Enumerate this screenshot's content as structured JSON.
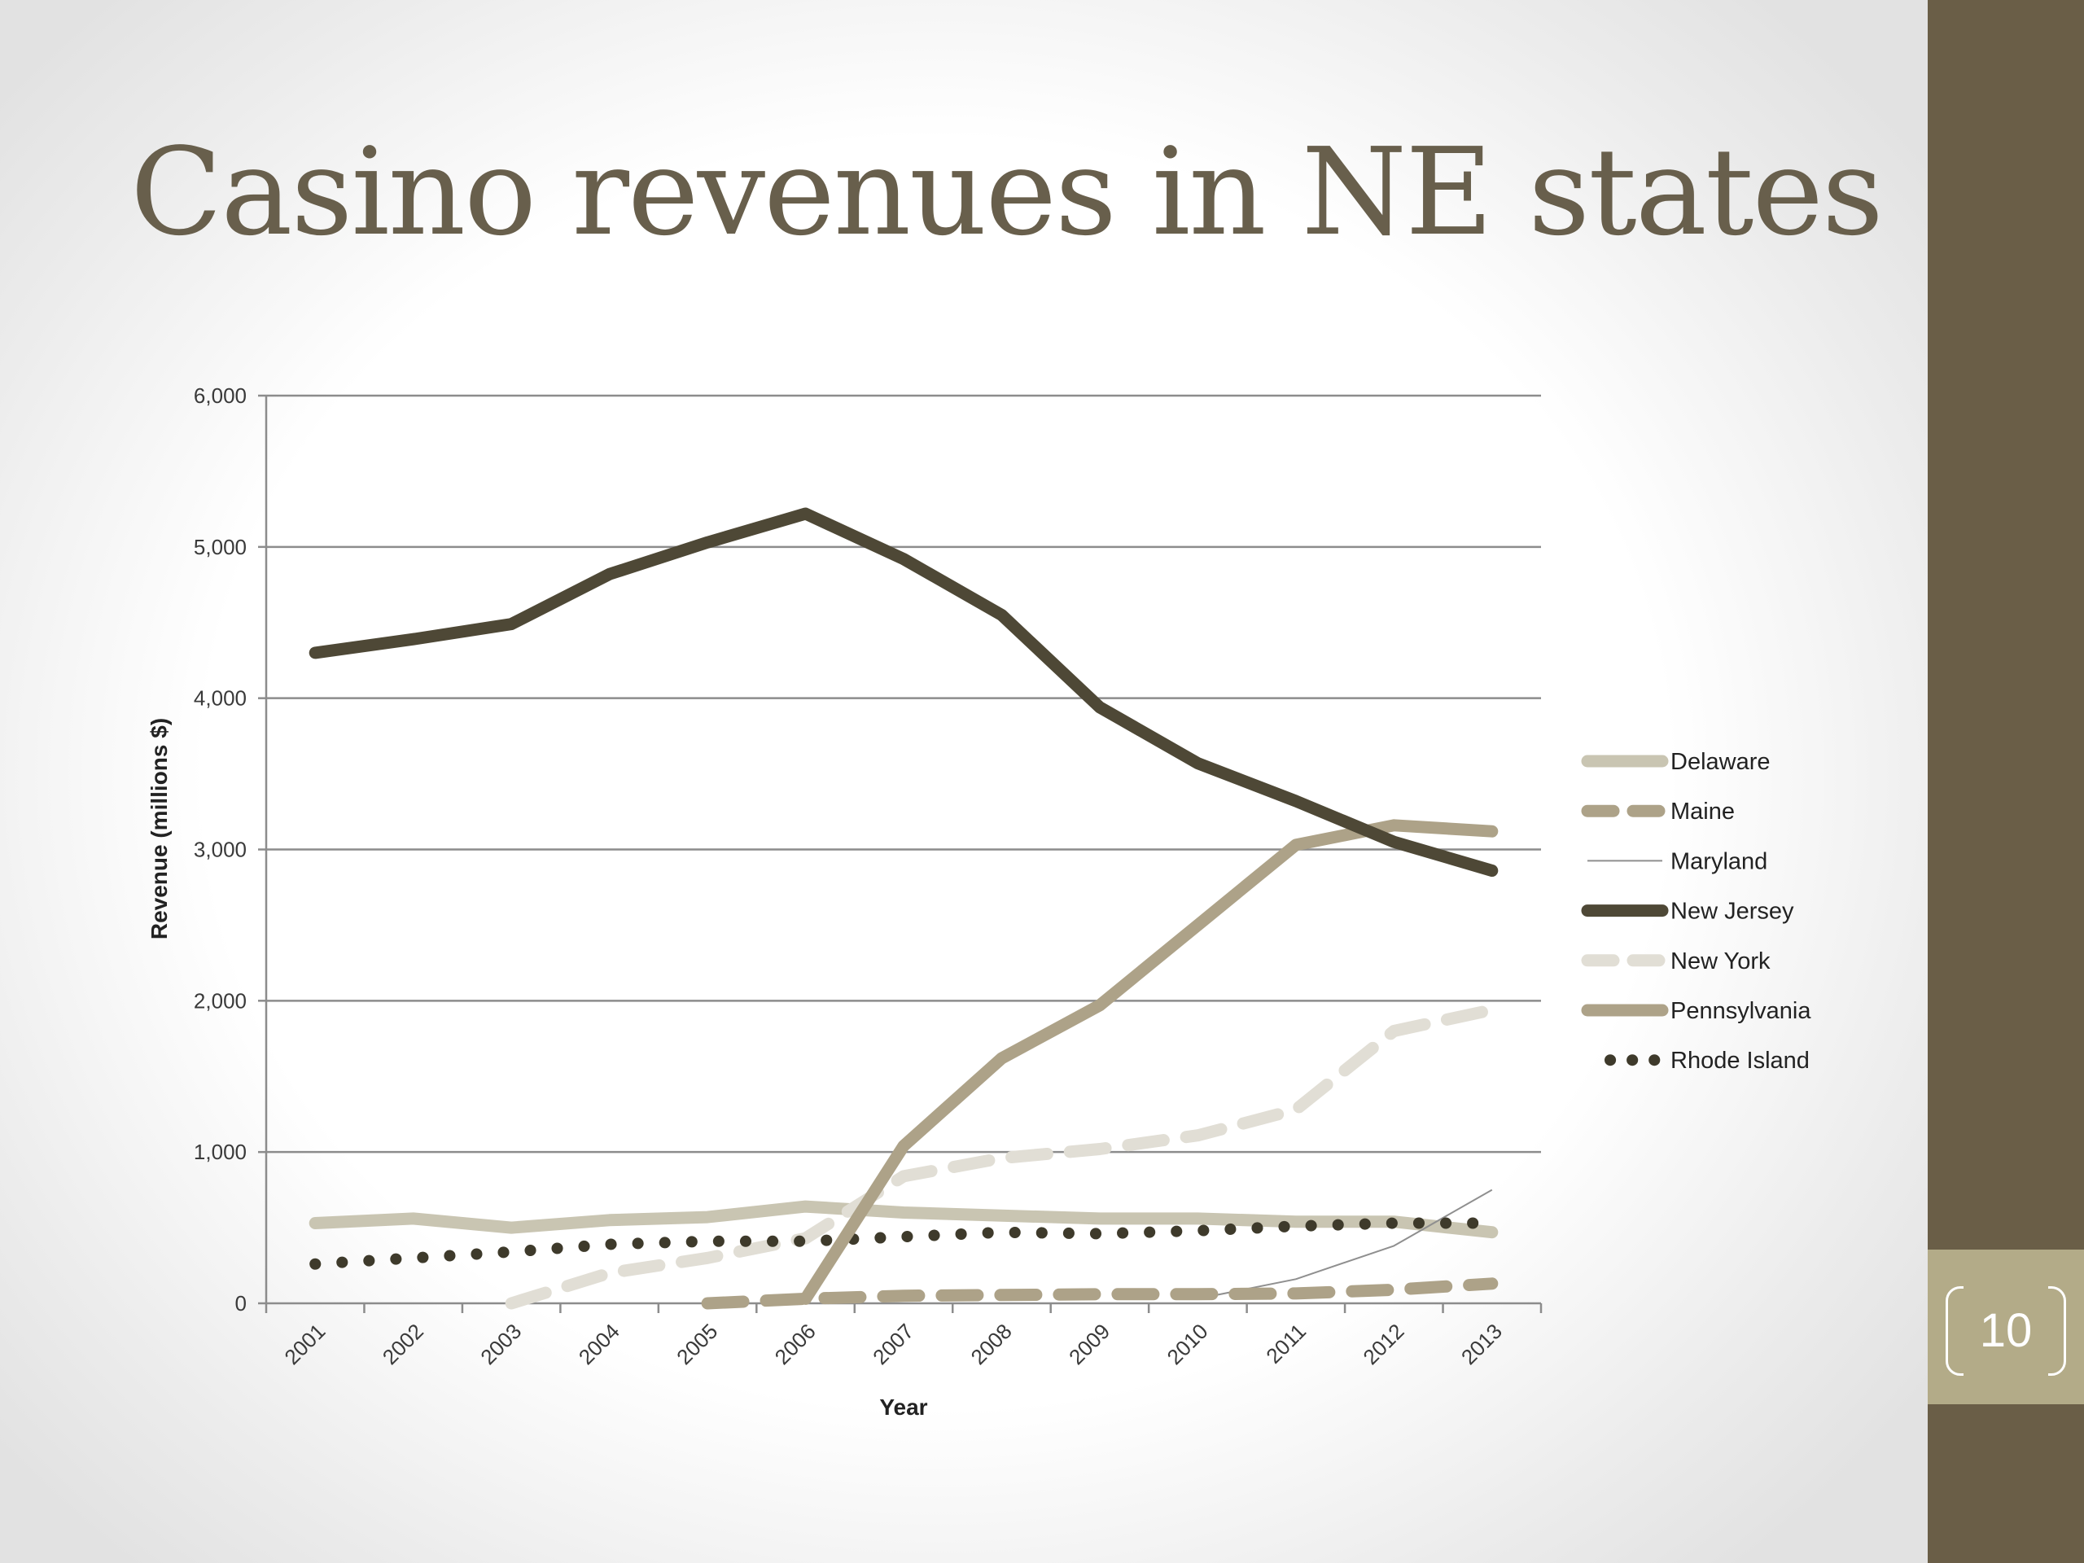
{
  "slide": {
    "title": "Casino revenues in NE states",
    "page_number": "10"
  },
  "colors": {
    "title": "#685f4c",
    "sidebar": "#6a5e47",
    "page_box": "#b3ab88"
  },
  "chart_data": {
    "type": "line",
    "title": "",
    "xlabel": "Year",
    "ylabel": "Revenue (millions $)",
    "ylim": [
      0,
      6000
    ],
    "ytick_labels": [
      "0",
      "1,000",
      "2,000",
      "3,000",
      "4,000",
      "5,000",
      "6,000"
    ],
    "yticks": [
      0,
      1000,
      2000,
      3000,
      4000,
      5000,
      6000
    ],
    "categories": [
      "2001",
      "2002",
      "2003",
      "2004",
      "2005",
      "2006",
      "2007",
      "2008",
      "2009",
      "2010",
      "2011",
      "2012",
      "2013"
    ],
    "grid": "horizontal",
    "legend_position": "right",
    "series": [
      {
        "name": "Delaware",
        "color": "#c9c5b2",
        "style": "solid-thick",
        "values": [
          530,
          560,
          500,
          550,
          570,
          640,
          600,
          580,
          560,
          560,
          540,
          540,
          470
        ]
      },
      {
        "name": "Maine",
        "color": "#ada288",
        "style": "dashed-thick",
        "values": [
          null,
          null,
          null,
          null,
          0,
          30,
          50,
          55,
          60,
          60,
          65,
          90,
          130
        ]
      },
      {
        "name": "Maryland",
        "color": "#8f8f8f",
        "style": "thin",
        "values": [
          null,
          null,
          null,
          null,
          null,
          null,
          null,
          null,
          null,
          30,
          160,
          380,
          750
        ]
      },
      {
        "name": "New Jersey",
        "color": "#4e4836",
        "style": "solid-thick",
        "values": [
          4300,
          4390,
          4490,
          4820,
          5030,
          5220,
          4920,
          4550,
          3940,
          3570,
          3320,
          3050,
          2860
        ]
      },
      {
        "name": "New York",
        "color": "#e1ded5",
        "style": "dashed-thick",
        "values": [
          null,
          null,
          0,
          200,
          300,
          430,
          840,
          960,
          1020,
          1110,
          1280,
          1800,
          1940
        ]
      },
      {
        "name": "Pennsylvania",
        "color": "#ada288",
        "style": "solid-thick",
        "values": [
          null,
          null,
          null,
          null,
          null,
          30,
          1040,
          1620,
          1970,
          2500,
          3030,
          3160,
          3120
        ]
      },
      {
        "name": "Rhode Island",
        "color": "#3e3a2b",
        "style": "dotted",
        "values": [
          260,
          300,
          340,
          390,
          410,
          410,
          440,
          470,
          460,
          480,
          510,
          530,
          530
        ]
      }
    ]
  }
}
